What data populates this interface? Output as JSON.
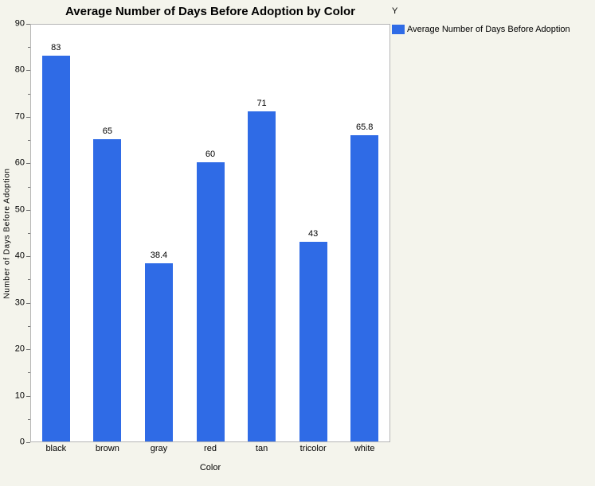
{
  "chart_data": {
    "type": "bar",
    "title": "Average Number of Days Before Adoption by Color",
    "categories": [
      "black",
      "brown",
      "gray",
      "red",
      "tan",
      "tricolor",
      "white"
    ],
    "values": [
      83,
      65,
      38.4,
      60,
      71,
      43,
      65.8
    ],
    "value_labels": [
      "83",
      "65",
      "38.4",
      "60",
      "71",
      "43",
      "65.8"
    ],
    "xlabel": "Color",
    "ylabel": "Number of Days Before Adoption",
    "ylim": [
      0,
      90
    ],
    "y_major_step": 10,
    "y_minor_step": 5,
    "y_tick_labels": [
      "0",
      "10",
      "20",
      "30",
      "40",
      "50",
      "60",
      "70",
      "80",
      "90"
    ],
    "grid": false,
    "legend": {
      "title": "Y",
      "position": "top-right",
      "entries": [
        {
          "label": "Average Number of Days Before Adoption",
          "color": "#2f6be6"
        }
      ]
    },
    "colors": {
      "bar": "#2f6be6",
      "page_background": "#f4f4ec",
      "plot_background": "#ffffff",
      "frame": "#b5b5b5",
      "tick": "#6e6e6e",
      "text": "#000000"
    }
  }
}
